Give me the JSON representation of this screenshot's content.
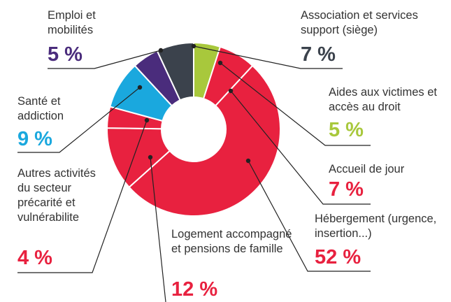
{
  "chart_data": {
    "type": "donut",
    "categories": [
      "Aides aux victimes et accès au droit",
      "Accueil de jour",
      "Hébergement (urgence, insertion...)",
      "Logement accompagné et pensions de famille",
      "Autres activités du secteur précarité et vulnérabilite",
      "Santé et addiction",
      "Emploi et mobilités",
      "Association et services support (siège)"
    ],
    "values": [
      5,
      7,
      52,
      12,
      4,
      9,
      5,
      7
    ],
    "value_labels": [
      "5 %",
      "7 %",
      "52 %",
      "12 %",
      "4 %",
      "9 %",
      "5 %",
      "7 %"
    ],
    "colors": [
      "#a8c83c",
      "#e8213f",
      "#e8213f",
      "#e8213f",
      "#e8213f",
      "#1aa8de",
      "#4a2c7c",
      "#3b424c"
    ]
  }
}
